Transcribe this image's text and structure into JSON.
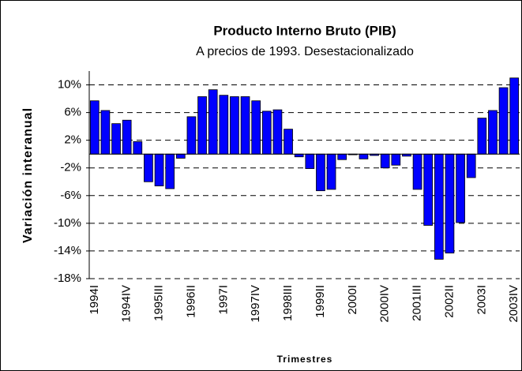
{
  "chart_data": {
    "type": "bar",
    "title": "Producto Interno Bruto (PIB)",
    "subtitle": "A precios de 1993. Desestacionalizado",
    "y_label": "Variación interanual",
    "x_label": "Trimestres",
    "categories": [
      "1994I",
      null,
      null,
      "1994IV",
      null,
      null,
      "1995III",
      null,
      null,
      "1996II",
      null,
      null,
      "1997I",
      null,
      null,
      "1997IV",
      null,
      null,
      "1998III",
      null,
      null,
      "1999II",
      null,
      null,
      "2000I",
      null,
      null,
      "2000IV",
      null,
      null,
      "2001III",
      null,
      null,
      "2002II",
      null,
      null,
      "2003I",
      null,
      null,
      "2003IV"
    ],
    "values": [
      7.7,
      6.3,
      4.4,
      4.9,
      1.8,
      -4.0,
      -4.6,
      -5.0,
      -0.6,
      5.4,
      8.3,
      9.3,
      8.5,
      8.3,
      8.3,
      7.7,
      6.2,
      6.4,
      3.6,
      -0.4,
      -2.1,
      -5.3,
      -5.1,
      -0.8,
      -0.1,
      -0.7,
      -0.2,
      -2.0,
      -1.6,
      -0.3,
      -5.1,
      -10.3,
      -15.2,
      -14.3,
      -9.9,
      -3.4,
      5.2,
      6.3,
      9.6,
      11.0
    ],
    "color": "#0000ff",
    "ylim": [
      -18,
      12
    ],
    "yticks": [
      {
        "value": -18,
        "label": "-18%"
      },
      {
        "value": -14,
        "label": "-14%"
      },
      {
        "value": -10,
        "label": "-10%"
      },
      {
        "value": -6,
        "label": "-6%"
      },
      {
        "value": -2,
        "label": "-2%"
      },
      {
        "value": 2,
        "label": "2%"
      },
      {
        "value": 6,
        "label": "6%"
      },
      {
        "value": 10,
        "label": "10%"
      }
    ],
    "grid": true
  }
}
